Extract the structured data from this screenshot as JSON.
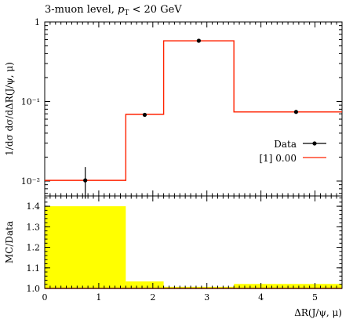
{
  "chart_data": [
    {
      "type": "step",
      "title": "3-muon level, p_T < 20 GeV",
      "title_parts": {
        "prefix": "3-muon level, ",
        "var": "p",
        "sub": "T",
        "suffix": " < 20 GeV"
      },
      "ylabel": "1/dσ dσ/dΔR(J/ψ, μ)",
      "yscale": "log",
      "ylim": [
        0.0065,
        1.0
      ],
      "xlim": [
        0,
        5.5
      ],
      "y_ticks": [
        {
          "value": 1,
          "label": "1"
        },
        {
          "value": 0.1,
          "label": "10⁻¹"
        },
        {
          "value": 0.01,
          "label": "10⁻²"
        }
      ],
      "bin_edges": [
        0,
        1.5,
        2.2,
        3.5,
        5.5
      ],
      "series": [
        {
          "name": "Data",
          "style": "points",
          "x": [
            0.75,
            1.85,
            2.85,
            4.65
          ],
          "y": [
            0.0102,
            0.068,
            0.58,
            0.074
          ],
          "y_err_low": [
            0.0042,
            0.003,
            0.02,
            0.002
          ],
          "y_err_high": [
            0.0048,
            0.003,
            0.02,
            0.002
          ],
          "color": "#000000"
        },
        {
          "name": "[1] 0.00",
          "style": "step",
          "values": [
            0.0102,
            0.069,
            0.58,
            0.074
          ],
          "color": "#ff2200"
        }
      ],
      "legend": {
        "placement": "right",
        "entries": [
          "Data",
          "[1] 0.00"
        ]
      }
    },
    {
      "type": "ratio",
      "ylabel": "MC/Data",
      "xlabel": "ΔR(J/ψ, μ)",
      "ylim": [
        1.0,
        1.45
      ],
      "xlim": [
        0,
        5.5
      ],
      "y_ticks": [
        {
          "value": 1.0,
          "label": "1.0"
        },
        {
          "value": 1.1,
          "label": "1.1"
        },
        {
          "value": 1.2,
          "label": "1.2"
        },
        {
          "value": 1.3,
          "label": "1.3"
        },
        {
          "value": 1.4,
          "label": "1.4"
        }
      ],
      "x_ticks": [
        {
          "value": 0,
          "label": "0"
        },
        {
          "value": 1,
          "label": "1"
        },
        {
          "value": 2,
          "label": "2"
        },
        {
          "value": 3,
          "label": "3"
        },
        {
          "value": 4,
          "label": "4"
        },
        {
          "value": 5,
          "label": "5"
        }
      ],
      "bin_edges": [
        0,
        1.5,
        2.2,
        3.5,
        5.5
      ],
      "band_upper": [
        1.4,
        1.034,
        1.008,
        1.022
      ],
      "band_color": "#ffff00",
      "ratio_values": [
        1.0,
        1.0,
        1.0,
        1.0
      ],
      "ratio_color": "#ff2200"
    }
  ]
}
